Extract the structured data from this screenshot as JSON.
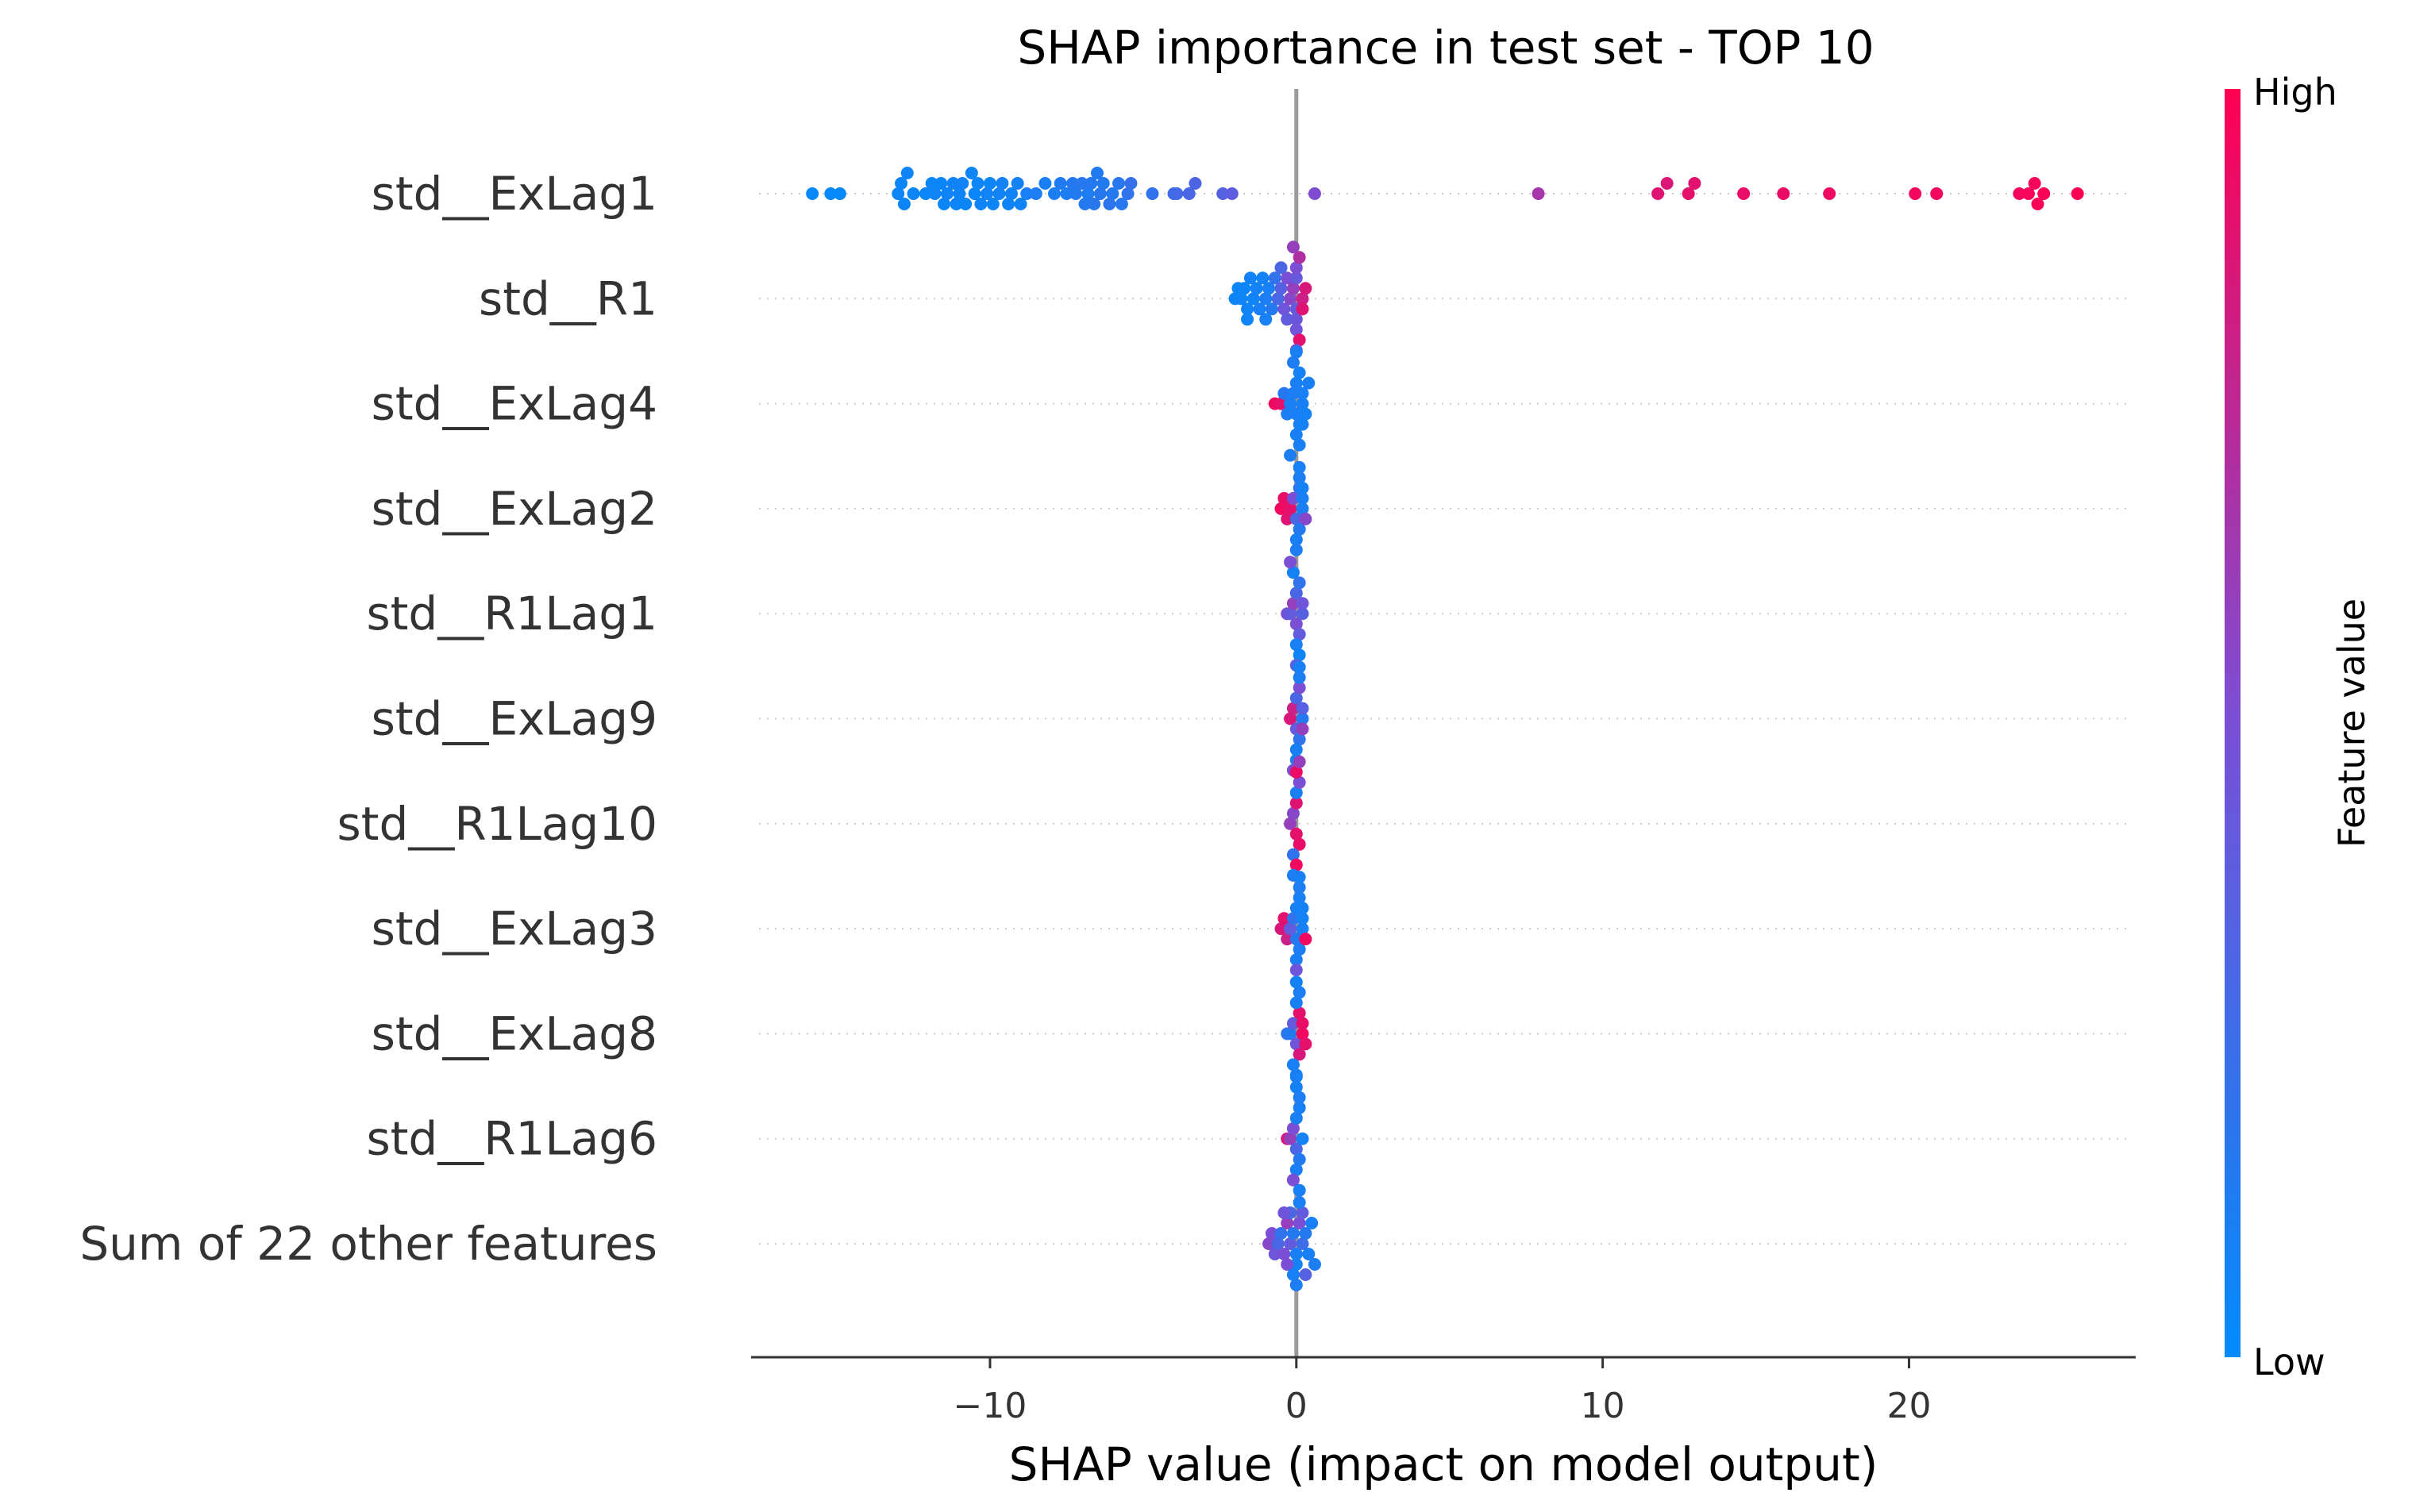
{
  "chart_data": {
    "type": "scatter",
    "subtype": "shap-beeswarm",
    "title": "SHAP importance in test set - TOP 10",
    "xlabel": "SHAP value (impact on model output)",
    "ylabel": "",
    "xlim": [
      -17.8,
      27.4
    ],
    "xticks": [
      -10,
      0,
      10,
      20
    ],
    "xtick_labels": [
      "−10",
      "0",
      "10",
      "20"
    ],
    "grid": false,
    "colorbar": {
      "label": "Feature value",
      "high_label": "High",
      "low_label": "Low",
      "low_color": "#008bfb",
      "high_color": "#ff0052"
    },
    "features": [
      "std__ExLag1",
      "std__R1",
      "std__ExLag4",
      "std__ExLag2",
      "std__R1Lag1",
      "std__ExLag9",
      "std__R1Lag10",
      "std__ExLag3",
      "std__ExLag8",
      "std__R1Lag6",
      "Sum of 22 other features"
    ],
    "series": [
      {
        "feature": "std__ExLag1",
        "x": [
          -15.8,
          -15.2,
          -14.9,
          -13.0,
          -12.9,
          -12.8,
          -12.7,
          -12.5,
          -12.1,
          -11.9,
          -11.8,
          -11.6,
          -11.5,
          -11.4,
          -11.2,
          -11.1,
          -11.0,
          -10.9,
          -10.8,
          -10.6,
          -10.5,
          -10.4,
          -10.3,
          -10.1,
          -10.0,
          -9.9,
          -9.7,
          -9.6,
          -9.4,
          -9.3,
          -9.1,
          -9.0,
          -8.8,
          -8.5,
          -8.2,
          -7.9,
          -7.7,
          -7.5,
          -7.3,
          -7.2,
          -7.0,
          -6.9,
          -6.8,
          -6.7,
          -6.6,
          -6.5,
          -6.4,
          -6.3,
          -6.1,
          -6.0,
          -5.8,
          -5.7,
          -5.5,
          -5.4,
          -4.7,
          -4.0,
          -3.9,
          -3.5,
          -3.3,
          -2.4,
          -2.1,
          0.6,
          7.9,
          11.8,
          12.1,
          12.8,
          13.0,
          14.6,
          15.9,
          17.4,
          20.2,
          20.9,
          23.6,
          23.9,
          24.1,
          24.2,
          24.4,
          25.5
        ],
        "c": [
          0.02,
          0.02,
          0.02,
          0.05,
          0.04,
          0.05,
          0.06,
          0.05,
          0.04,
          0.05,
          0.06,
          0.04,
          0.05,
          0.06,
          0.07,
          0.05,
          0.06,
          0.07,
          0.05,
          0.06,
          0.04,
          0.05,
          0.06,
          0.07,
          0.05,
          0.06,
          0.07,
          0.08,
          0.06,
          0.07,
          0.08,
          0.06,
          0.1,
          0.12,
          0.1,
          0.12,
          0.14,
          0.12,
          0.15,
          0.13,
          0.16,
          0.14,
          0.12,
          0.15,
          0.17,
          0.13,
          0.16,
          0.14,
          0.18,
          0.15,
          0.17,
          0.16,
          0.2,
          0.22,
          0.2,
          0.26,
          0.28,
          0.3,
          0.32,
          0.35,
          0.38,
          0.52,
          0.66,
          0.88,
          0.86,
          0.9,
          0.89,
          0.92,
          0.93,
          0.94,
          0.95,
          0.95,
          0.96,
          0.97,
          0.97,
          0.98,
          0.98,
          0.99
        ]
      },
      {
        "feature": "std__R1",
        "x": [
          -2.0,
          -1.9,
          -1.8,
          -1.7,
          -1.6,
          -1.5,
          -1.4,
          -1.3,
          -1.2,
          -1.1,
          -1.0,
          -0.9,
          -0.8,
          -0.7,
          -0.6,
          -0.5,
          -0.4,
          -0.3,
          -0.2,
          -0.1,
          0.0,
          0.0,
          0.0,
          0.0,
          0.0,
          0.1,
          0.2,
          0.3,
          0.2,
          0.1,
          -0.1,
          -0.3,
          -1.0,
          -1.6,
          -0.5,
          0.0
        ],
        "c": [
          0.05,
          0.05,
          0.06,
          0.05,
          0.06,
          0.07,
          0.06,
          0.08,
          0.1,
          0.08,
          0.12,
          0.1,
          0.15,
          0.2,
          0.3,
          0.35,
          0.45,
          0.5,
          0.55,
          0.6,
          0.4,
          0.42,
          0.44,
          0.5,
          0.45,
          0.7,
          0.8,
          0.85,
          0.88,
          0.9,
          0.6,
          0.4,
          0.1,
          0.06,
          0.3,
          0.45
        ]
      },
      {
        "feature": "std__ExLag4",
        "x": [
          -0.7,
          -0.5,
          -0.4,
          -0.3,
          -0.2,
          -0.1,
          0.0,
          0.0,
          0.1,
          0.1,
          0.2,
          0.2,
          0.3,
          0.4,
          0.0,
          -0.1,
          0.1,
          0.2,
          0.0,
          -0.2
        ],
        "c": [
          0.95,
          0.9,
          0.15,
          0.12,
          0.1,
          0.12,
          0.1,
          0.1,
          0.12,
          0.08,
          0.1,
          0.1,
          0.08,
          0.1,
          0.1,
          0.12,
          0.1,
          0.08,
          0.1,
          0.12
        ]
      },
      {
        "feature": "std__ExLag2",
        "x": [
          -0.5,
          -0.4,
          -0.3,
          -0.2,
          -0.1,
          0.0,
          0.1,
          0.1,
          0.2,
          0.2,
          0.3,
          0.1,
          0.0,
          0.1,
          0.2,
          0.0
        ],
        "c": [
          0.95,
          0.92,
          0.88,
          0.9,
          0.5,
          0.3,
          0.2,
          0.15,
          0.12,
          0.1,
          0.55,
          0.12,
          0.1,
          0.1,
          0.08,
          0.12
        ]
      },
      {
        "feature": "std__R1Lag1",
        "x": [
          -0.3,
          -0.2,
          -0.1,
          0.0,
          0.0,
          0.1,
          0.1,
          0.2,
          0.0,
          -0.1,
          0.1,
          0.2,
          -0.2,
          0.0
        ],
        "c": [
          0.5,
          0.4,
          0.6,
          0.5,
          0.3,
          0.4,
          0.2,
          0.35,
          0.1,
          0.08,
          0.06,
          0.45,
          0.5,
          0.35
        ]
      },
      {
        "feature": "std__ExLag9",
        "x": [
          -0.2,
          -0.1,
          0.0,
          0.0,
          0.1,
          0.1,
          0.2,
          0.2,
          0.0,
          0.1,
          0.0,
          0.1,
          -0.1,
          0.2
        ],
        "c": [
          0.85,
          0.8,
          0.4,
          0.3,
          0.2,
          0.5,
          0.15,
          0.35,
          0.1,
          0.12,
          0.08,
          0.1,
          0.5,
          0.6
        ]
      },
      {
        "feature": "std__R1Lag10",
        "x": [
          -0.2,
          -0.1,
          0.0,
          0.0,
          0.1,
          0.0,
          -0.1,
          0.1,
          0.0,
          0.0,
          -0.1,
          0.1
        ],
        "c": [
          0.6,
          0.55,
          0.9,
          0.88,
          0.92,
          0.1,
          0.2,
          0.5,
          0.95,
          0.93,
          0.12,
          0.6
        ]
      },
      {
        "feature": "std__ExLag3",
        "x": [
          -0.5,
          -0.4,
          -0.3,
          -0.2,
          -0.1,
          0.0,
          0.0,
          0.1,
          0.1,
          0.2,
          0.2,
          0.3,
          0.0,
          0.1,
          0.0,
          0.1,
          0.2
        ],
        "c": [
          0.85,
          0.9,
          0.8,
          0.4,
          0.2,
          0.15,
          0.1,
          0.12,
          0.1,
          0.1,
          0.08,
          0.95,
          0.1,
          0.12,
          0.45,
          0.1,
          0.08
        ]
      },
      {
        "feature": "std__ExLag8",
        "x": [
          -0.3,
          -0.2,
          -0.1,
          0.0,
          0.1,
          0.1,
          0.2,
          0.2,
          0.3,
          0.0,
          -0.1,
          0.1,
          0.0,
          0.0
        ],
        "c": [
          0.2,
          0.15,
          0.4,
          0.45,
          0.9,
          0.85,
          0.95,
          0.92,
          0.9,
          0.1,
          0.1,
          0.12,
          0.1,
          0.08
        ]
      },
      {
        "feature": "std__R1Lag6",
        "x": [
          -0.3,
          -0.2,
          -0.1,
          0.0,
          0.0,
          0.1,
          0.1,
          0.2,
          0.0,
          0.1,
          -0.1,
          0.0,
          0.1,
          0.0
        ],
        "c": [
          0.85,
          0.6,
          0.5,
          0.3,
          0.1,
          0.15,
          0.1,
          0.08,
          0.1,
          0.12,
          0.5,
          0.08,
          0.1,
          0.1
        ]
      },
      {
        "feature": "Sum of 22 other features",
        "x": [
          -0.9,
          -0.8,
          -0.7,
          -0.6,
          -0.5,
          -0.4,
          -0.3,
          -0.2,
          -0.1,
          0.0,
          0.1,
          0.2,
          0.3,
          0.4,
          0.5,
          0.6,
          0.0,
          -0.2,
          0.2,
          -0.3,
          0.3,
          -0.1,
          0.1,
          0.0,
          -0.4
        ],
        "c": [
          0.55,
          0.5,
          0.45,
          0.3,
          0.2,
          0.5,
          0.6,
          0.4,
          0.15,
          0.1,
          0.5,
          0.25,
          0.15,
          0.1,
          0.1,
          0.12,
          0.08,
          0.3,
          0.4,
          0.5,
          0.35,
          0.1,
          0.1,
          0.12,
          0.45
        ]
      }
    ]
  }
}
